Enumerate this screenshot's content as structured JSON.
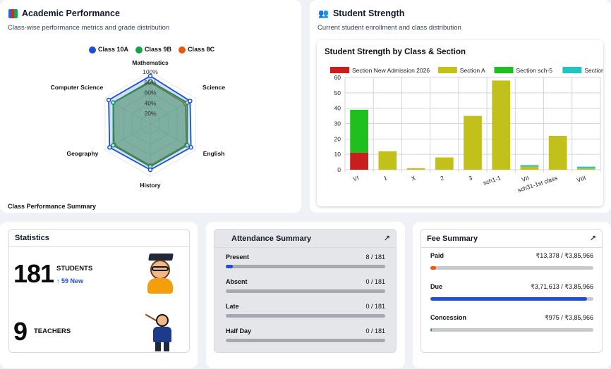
{
  "academic": {
    "title": "Academic Performance",
    "subtitle": "Class-wise performance metrics and grade distribution",
    "footer": "Class Performance Summary",
    "icon": "books-icon"
  },
  "strength": {
    "title": "Student Strength",
    "subtitle": "Current student enrollment and class distribution",
    "icon": "users-icon"
  },
  "stats": {
    "title": "Statistics",
    "students_count": "181",
    "students_label": "STUDENTS",
    "new_label": "↑ 59 New",
    "teachers_count": "9",
    "teachers_label": "TEACHERS"
  },
  "attendance": {
    "title": "Attendance Summary",
    "rows": [
      {
        "label": "Present",
        "value": "8 / 181",
        "fraction": 0.044
      },
      {
        "label": "Absent",
        "value": "0 / 181",
        "fraction": 0
      },
      {
        "label": "Late",
        "value": "0 / 181",
        "fraction": 0
      },
      {
        "label": "Half Day",
        "value": "0 / 181",
        "fraction": 0
      }
    ]
  },
  "fees": {
    "title": "Fee Summary",
    "rows": [
      {
        "label": "Paid",
        "value": "₹13,378 / ₹3,85,966",
        "fraction": 0.035,
        "color": "#ea580c"
      },
      {
        "label": "Due",
        "value": "₹3,71,613 / ₹3,85,966",
        "fraction": 0.963,
        "color": "#1d4ed8"
      },
      {
        "label": "Concession",
        "value": "₹975 / ₹3,85,966",
        "fraction": 0.0025,
        "color": "#16a34a"
      }
    ]
  },
  "chart_data": [
    {
      "type": "radar",
      "title": "",
      "axes": [
        "Mathematics",
        "Science",
        "English",
        "History",
        "Geography",
        "Computer Science"
      ],
      "tick_labels": [
        "20%",
        "40%",
        "60%",
        "80%",
        "100%"
      ],
      "range": [
        0,
        100
      ],
      "series": [
        {
          "name": "Class 10A",
          "color": "#1d4ed8",
          "values": [
            92,
            88,
            90,
            88,
            90,
            92
          ]
        },
        {
          "name": "Class 9B",
          "color": "#16a34a",
          "values": [
            82,
            82,
            82,
            82,
            82,
            82
          ]
        },
        {
          "name": "Class 8C",
          "color": "#ea580c",
          "values": [
            80,
            78,
            80,
            80,
            80,
            82
          ]
        }
      ]
    },
    {
      "type": "bar",
      "stacked": true,
      "title": "Student Strength by Class & Section",
      "categories": [
        "VI",
        "1",
        "X",
        "2",
        "3",
        "sch1-1",
        "VII",
        "sch31-1st class",
        "VIII"
      ],
      "ylim": [
        0,
        60
      ],
      "yticks": [
        0,
        10,
        20,
        30,
        40,
        50,
        60
      ],
      "series": [
        {
          "name": "Section New Admission 2026",
          "color": "#c81e1e",
          "values": [
            11,
            0,
            0,
            0,
            0,
            0,
            0,
            0,
            0
          ]
        },
        {
          "name": "Section A",
          "color": "#c2c01a",
          "values": [
            0,
            12,
            1,
            8,
            35,
            58,
            2,
            22,
            1
          ]
        },
        {
          "name": "Section sch-5",
          "color": "#1fbf1f",
          "values": [
            28,
            0,
            0,
            0,
            0,
            0,
            0,
            0,
            0
          ]
        },
        {
          "name": "Section B",
          "color": "#22c3c3",
          "values": [
            0,
            0,
            0,
            0,
            0,
            0,
            1,
            0,
            1
          ]
        }
      ]
    }
  ]
}
